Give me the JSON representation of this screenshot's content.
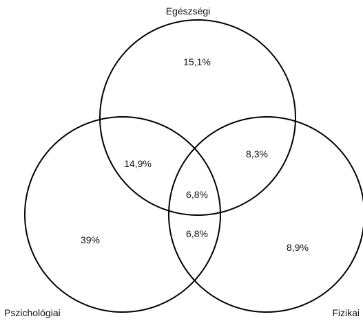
{
  "sets": [
    {
      "key": "health",
      "label": "Egészségi"
    },
    {
      "key": "psych",
      "label": "Pszichológiai"
    },
    {
      "key": "physical",
      "label": "Fizikai"
    }
  ],
  "regions": {
    "health_only": "15,1%",
    "health_psych": "14,9%",
    "health_physical": "8,3%",
    "all_three": "6,8%",
    "psych_physical": "6,8%",
    "psych_only": "39%",
    "physical_only": "8,9%"
  },
  "colors": {
    "stroke": "#000000",
    "text": "#111111",
    "background": "#ffffff"
  }
}
